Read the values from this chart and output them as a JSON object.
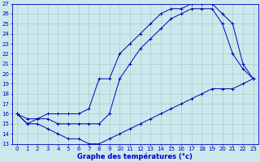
{
  "xlabel": "Graphe des températures (°c)",
  "background_color": "#cce8ec",
  "grid_color": "#aacccc",
  "line_color": "#0000bb",
  "xlim_min": -0.5,
  "xlim_max": 23.5,
  "ylim_min": 13,
  "ylim_max": 27,
  "xticks": [
    0,
    1,
    2,
    3,
    4,
    5,
    6,
    7,
    8,
    9,
    10,
    11,
    12,
    13,
    14,
    15,
    16,
    17,
    18,
    19,
    20,
    21,
    22,
    23
  ],
  "yticks": [
    13,
    14,
    15,
    16,
    17,
    18,
    19,
    20,
    21,
    22,
    23,
    24,
    25,
    26,
    27
  ],
  "line1_x": [
    0,
    1,
    2,
    3,
    4,
    5,
    6,
    7,
    8,
    9,
    10,
    11,
    12,
    13,
    14,
    15,
    16,
    17,
    18,
    19,
    20,
    21,
    22,
    23
  ],
  "line1_y": [
    16,
    15,
    15.5,
    16,
    16,
    16,
    16,
    16.5,
    19.5,
    19.5,
    22,
    23,
    24,
    25,
    26,
    26.5,
    26.5,
    27,
    27,
    27,
    26,
    25,
    21,
    19.5
  ],
  "line2_x": [
    0,
    1,
    2,
    3,
    4,
    5,
    6,
    7,
    8,
    9,
    10,
    11,
    12,
    13,
    14,
    15,
    16,
    17,
    18,
    19,
    20,
    21,
    22,
    23
  ],
  "line2_y": [
    16,
    15.5,
    15.5,
    15.5,
    15,
    15,
    15,
    15,
    15,
    16,
    19.5,
    21,
    22.5,
    23.5,
    24.5,
    25.5,
    26,
    26.5,
    26.5,
    26.5,
    25,
    22,
    20.5,
    19.5
  ],
  "line3_x": [
    0,
    1,
    2,
    3,
    4,
    5,
    6,
    7,
    8,
    9,
    10,
    11,
    12,
    13,
    14,
    15,
    16,
    17,
    18,
    19,
    20,
    21,
    22,
    23
  ],
  "line3_y": [
    16,
    15,
    15,
    14.5,
    14,
    13.5,
    13.5,
    13,
    13,
    13.5,
    14,
    14.5,
    15,
    15.5,
    16,
    16.5,
    17,
    17.5,
    18,
    18.5,
    18.5,
    18.5,
    19,
    19.5
  ],
  "figsize": [
    3.2,
    2.0
  ],
  "dpi": 100,
  "tick_fontsize": 5,
  "xlabel_fontsize": 6
}
